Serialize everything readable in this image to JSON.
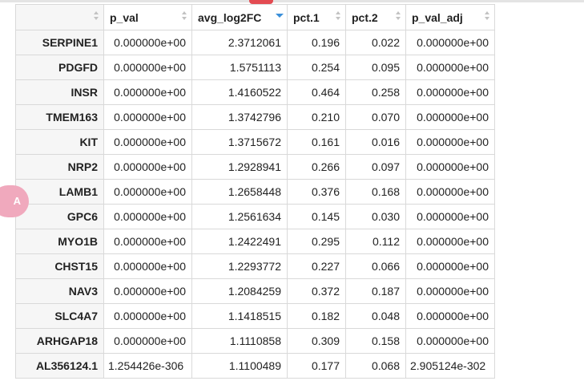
{
  "table": {
    "columns": [
      {
        "label": "",
        "sorted": false
      },
      {
        "label": "p_val",
        "sorted": false
      },
      {
        "label": "avg_log2FC",
        "sorted": true,
        "sort_dir": "desc"
      },
      {
        "label": "pct.1",
        "sorted": false
      },
      {
        "label": "pct.2",
        "sorted": false
      },
      {
        "label": "p_val_adj",
        "sorted": false
      }
    ],
    "rows": [
      [
        "SERPINE1",
        "0.000000e+00",
        "2.3712061",
        "0.196",
        "0.022",
        "0.000000e+00"
      ],
      [
        "PDGFD",
        "0.000000e+00",
        "1.5751113",
        "0.254",
        "0.095",
        "0.000000e+00"
      ],
      [
        "INSR",
        "0.000000e+00",
        "1.4160522",
        "0.464",
        "0.258",
        "0.000000e+00"
      ],
      [
        "TMEM163",
        "0.000000e+00",
        "1.3742796",
        "0.210",
        "0.070",
        "0.000000e+00"
      ],
      [
        "KIT",
        "0.000000e+00",
        "1.3715672",
        "0.161",
        "0.016",
        "0.000000e+00"
      ],
      [
        "NRP2",
        "0.000000e+00",
        "1.2928941",
        "0.266",
        "0.097",
        "0.000000e+00"
      ],
      [
        "LAMB1",
        "0.000000e+00",
        "1.2658448",
        "0.376",
        "0.168",
        "0.000000e+00"
      ],
      [
        "GPC6",
        "0.000000e+00",
        "1.2561634",
        "0.145",
        "0.030",
        "0.000000e+00"
      ],
      [
        "MYO1B",
        "0.000000e+00",
        "1.2422491",
        "0.295",
        "0.112",
        "0.000000e+00"
      ],
      [
        "CHST15",
        "0.000000e+00",
        "1.2293772",
        "0.227",
        "0.066",
        "0.000000e+00"
      ],
      [
        "NAV3",
        "0.000000e+00",
        "1.2084259",
        "0.372",
        "0.187",
        "0.000000e+00"
      ],
      [
        "SLC4A7",
        "0.000000e+00",
        "1.1418515",
        "0.182",
        "0.048",
        "0.000000e+00"
      ],
      [
        "ARHGAP18",
        "0.000000e+00",
        "1.1110858",
        "0.309",
        "0.158",
        "0.000000e+00"
      ],
      [
        "AL356124.1",
        "1.254426e-306",
        "1.1100489",
        "0.177",
        "0.068",
        "2.905124e-302"
      ]
    ]
  },
  "overlay": {
    "translate_badge_text": "A",
    "translate_icon": "translate-icon"
  },
  "colors": {
    "sort_active": "#3b8fd9",
    "badge": "#f0a9bd",
    "top_tab": "#e34b52"
  }
}
